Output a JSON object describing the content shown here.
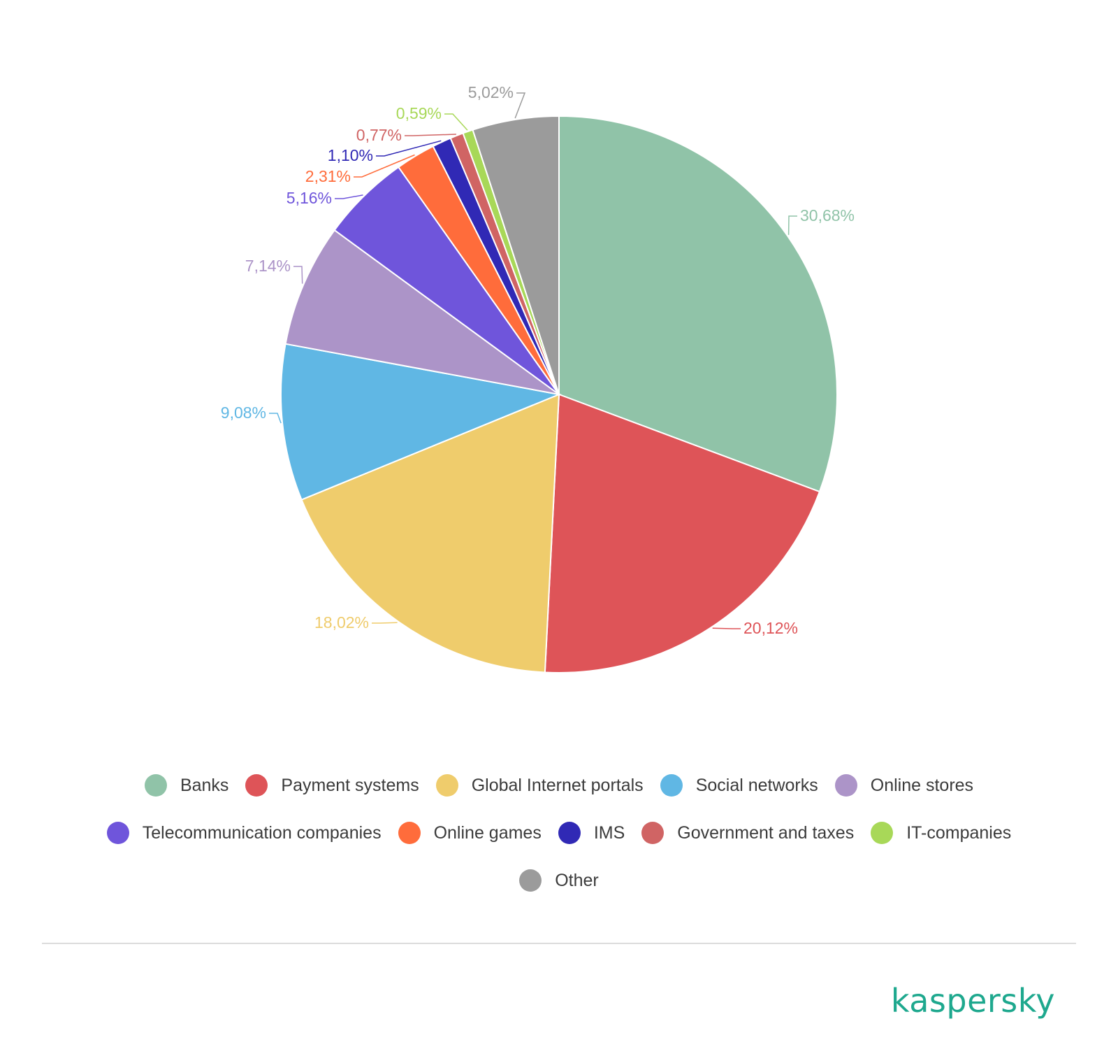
{
  "chart_data": {
    "type": "pie",
    "categories": [
      "Banks",
      "Payment systems",
      "Global Internet portals",
      "Social networks",
      "Online stores",
      "Telecommunication companies",
      "Online games",
      "IMS",
      "Government and taxes",
      "IT-companies",
      "Other"
    ],
    "values": [
      30.68,
      20.12,
      18.02,
      9.08,
      7.14,
      5.16,
      2.31,
      1.1,
      0.77,
      0.59,
      5.02
    ],
    "value_labels": [
      "30,68%",
      "20,12%",
      "18,02%",
      "9,08%",
      "7,14%",
      "5,16%",
      "2,31%",
      "1,10%",
      "0,77%",
      "0,59%",
      "5,02%"
    ],
    "colors": [
      "#90c3a8",
      "#de5458",
      "#efcc6c",
      "#60b7e4",
      "#ac94c8",
      "#6f55db",
      "#ff6c3b",
      "#3029b5",
      "#d06464",
      "#a8d858",
      "#9b9b9b"
    ],
    "start_angle": "12 o'clock",
    "direction": "clockwise",
    "legend_position": "bottom"
  },
  "legend": {
    "rows": [
      [
        0,
        1,
        2,
        3,
        4
      ],
      [
        5,
        6,
        7,
        8,
        9
      ],
      [
        10
      ]
    ]
  },
  "brand": {
    "logo_text": "kaspersky",
    "color": "#1ea88e"
  }
}
